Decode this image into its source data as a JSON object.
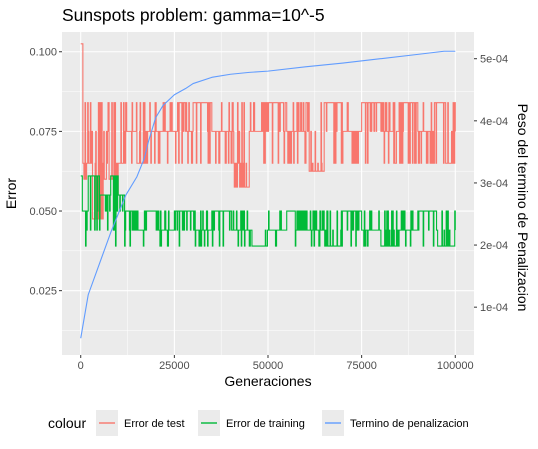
{
  "chart_data": {
    "type": "line",
    "title": "Sunspots problem: gamma=10^-5",
    "xlabel": "Generaciones",
    "ylabel": "Error",
    "ylabel_right": "Peso del termino de Penalizacion",
    "xlim": [
      -5000,
      105000
    ],
    "ylim": [
      0.0048,
      0.1062
    ],
    "ylim_right": [
      2.3e-05,
      0.000543
    ],
    "x_ticks": [
      0,
      25000,
      50000,
      75000,
      100000
    ],
    "x_tick_labels": [
      "0",
      "25000",
      "50000",
      "75000",
      "100000"
    ],
    "y_ticks": [
      0.025,
      0.05,
      0.075,
      0.1
    ],
    "y_tick_labels": [
      "0.025",
      "0.050",
      "0.075",
      "0.100"
    ],
    "y_right_ticks": [
      0.0001,
      0.0002,
      0.0003,
      0.0004,
      0.0005
    ],
    "y_right_tick_labels": [
      "1e-04",
      "2e-04",
      "3e-04",
      "4e-04",
      "5e-04"
    ],
    "grid": true,
    "legend": {
      "title": "colour",
      "position": "bottom"
    },
    "series": [
      {
        "name": "Error de test",
        "color": "#f8766d",
        "axis": "left",
        "levels": [
          0.1,
          0.075,
          0.065,
          0.06,
          0.0475,
          0.084,
          0.055
        ],
        "base": 0.075,
        "description": "noisy step signal alternating mainly between 0.065 and 0.084 with occasional drops",
        "x": [
          0,
          500,
          800,
          1500,
          3000,
          6000,
          9000,
          10000,
          12000,
          15000,
          17000,
          20000,
          26000,
          28000,
          30000,
          35000,
          40000,
          41000,
          45000,
          50000,
          55000,
          60000,
          61000,
          65000,
          70000,
          75000,
          80000,
          85000,
          90000,
          95000,
          97000,
          100000
        ],
        "y": [
          0.1025,
          0.065,
          0.06,
          0.065,
          0.0475,
          0.06,
          0.055,
          0.065,
          0.075,
          0.065,
          0.075,
          0.075,
          0.084,
          0.075,
          0.084,
          0.075,
          0.075,
          0.0575,
          0.075,
          0.084,
          0.075,
          0.084,
          0.0625,
          0.084,
          0.075,
          0.084,
          0.075,
          0.084,
          0.075,
          0.084,
          0.065,
          0.075
        ]
      },
      {
        "name": "Error de training",
        "color": "#00ba38",
        "axis": "left",
        "levels": [
          0.061,
          0.055,
          0.05,
          0.044,
          0.039
        ],
        "base": 0.044,
        "description": "noisy step signal mostly at 0.044 with spikes up to 0.050 and down to 0.039",
        "x": [
          0,
          500,
          2000,
          5000,
          8000,
          10000,
          12000,
          15000,
          17000,
          20000,
          25000,
          30000,
          35000,
          40000,
          45000,
          50000,
          55000,
          60000,
          65000,
          70000,
          75000,
          80000,
          85000,
          90000,
          95000,
          100000
        ],
        "y": [
          0.061,
          0.05,
          0.061,
          0.055,
          0.061,
          0.055,
          0.05,
          0.044,
          0.05,
          0.044,
          0.05,
          0.044,
          0.05,
          0.044,
          0.039,
          0.044,
          0.05,
          0.044,
          0.039,
          0.05,
          0.044,
          0.039,
          0.044,
          0.05,
          0.039,
          0.044
        ]
      },
      {
        "name": "Termino de penalizacion",
        "color": "#619cff",
        "axis": "right",
        "x": [
          0,
          2000,
          5000,
          8000,
          10000,
          12000,
          15000,
          17000,
          18000,
          19000,
          20000,
          22000,
          25000,
          28000,
          30000,
          35000,
          40000,
          45000,
          50000,
          60000,
          70000,
          80000,
          90000,
          97000,
          100000
        ],
        "y": [
          5e-05,
          0.00012,
          0.00017,
          0.00022,
          0.00025,
          0.00028,
          0.00031,
          0.00034,
          0.000365,
          0.000385,
          0.000405,
          0.000425,
          0.000442,
          0.000452,
          0.00046,
          0.00047,
          0.000475,
          0.000478,
          0.00048,
          0.000487,
          0.000493,
          0.0005,
          0.000507,
          0.000512,
          0.000512
        ]
      }
    ]
  }
}
